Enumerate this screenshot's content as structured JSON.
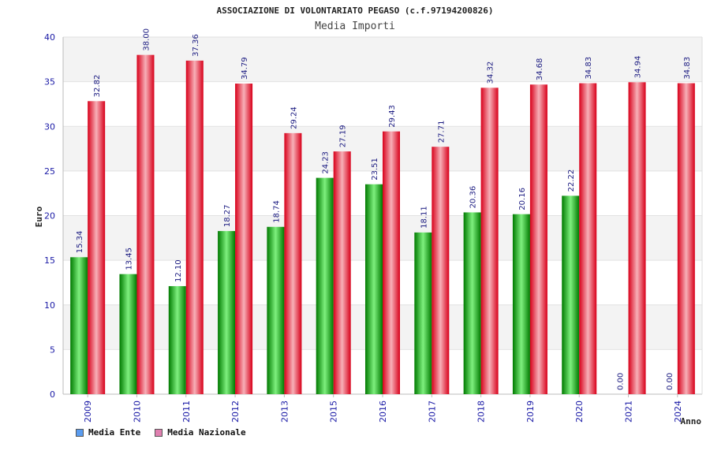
{
  "chart_data": {
    "type": "bar",
    "title": "ASSOCIAZIONE DI VOLONTARIATO PEGASO (c.f.97194200826)",
    "subtitle": "Media Importi",
    "xlabel": "Anno",
    "ylabel": "Euro",
    "ylim": [
      0,
      40
    ],
    "yticks": [
      0,
      5,
      10,
      15,
      20,
      25,
      30,
      35,
      40
    ],
    "categories": [
      "2009",
      "2010",
      "2011",
      "2012",
      "2013",
      "2015",
      "2016",
      "2017",
      "2018",
      "2019",
      "2020",
      "2021",
      "2024"
    ],
    "series": [
      {
        "name": "Media Ente",
        "color": "#00b400",
        "values": [
          15.34,
          13.45,
          12.1,
          18.27,
          18.74,
          24.23,
          23.51,
          18.11,
          20.36,
          20.16,
          22.22,
          0.0,
          0.0
        ]
      },
      {
        "name": "Media Nazionale",
        "color": "#e8001c",
        "values": [
          32.82,
          38.0,
          37.36,
          34.79,
          29.24,
          27.19,
          29.43,
          27.71,
          34.32,
          34.68,
          34.83,
          34.94,
          34.83
        ]
      }
    ],
    "data_labels": {
      "Media Ente": [
        "15.34",
        "13.45",
        "12.10",
        "18.27",
        "18.74",
        "24.23",
        "23.51",
        "18.11",
        "20.36",
        "20.16",
        "22.22",
        "0.00",
        "0.00"
      ],
      "Media Nazionale": [
        "32.82",
        "38.00",
        "37.36",
        "34.79",
        "29.24",
        "27.19",
        "29.43",
        "27.71",
        "34.32",
        "34.68",
        "34.83",
        "34.94",
        "34.83"
      ]
    },
    "legend": {
      "position": "bottom-left",
      "items": [
        {
          "label": "Media Ente",
          "swatch_color": "#5a9cf0"
        },
        {
          "label": "Media Nazionale",
          "swatch_color": "#e080b0"
        }
      ]
    }
  }
}
